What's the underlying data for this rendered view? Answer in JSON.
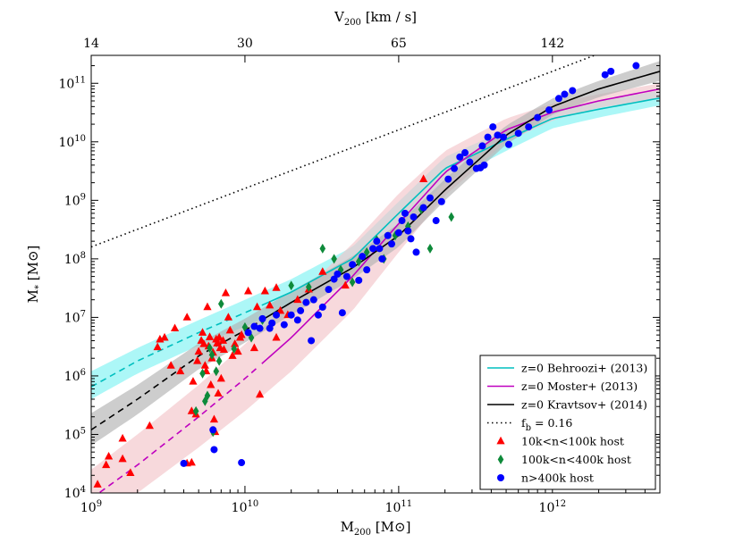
{
  "chart_data": {
    "type": "scatter",
    "x_scale": "log",
    "y_scale": "log",
    "xlim": [
      1000000000.0,
      5000000000000.0
    ],
    "ylim": [
      10000.0,
      300000000000.0
    ],
    "xlabel": "M200 [M⊙]",
    "ylabel": "M* [M⊙]",
    "top_axis_label": "V200 [km / s]",
    "x_ticks": [
      1000000000.0,
      10000000000.0,
      100000000000.0,
      1000000000000.0
    ],
    "x_tick_labels": [
      {
        "base": "10",
        "exp": "9"
      },
      {
        "base": "10",
        "exp": "10"
      },
      {
        "base": "10",
        "exp": "11"
      },
      {
        "base": "10",
        "exp": "12"
      }
    ],
    "y_ticks": [
      10000.0,
      100000.0,
      1000000.0,
      10000000.0,
      100000000.0,
      1000000000.0,
      10000000000.0,
      100000000000.0
    ],
    "y_tick_labels": [
      {
        "base": "10",
        "exp": "4"
      },
      {
        "base": "10",
        "exp": "5"
      },
      {
        "base": "10",
        "exp": "6"
      },
      {
        "base": "10",
        "exp": "7"
      },
      {
        "base": "10",
        "exp": "8"
      },
      {
        "base": "10",
        "exp": "9"
      },
      {
        "base": "10",
        "exp": "10"
      },
      {
        "base": "10",
        "exp": "11"
      }
    ],
    "top_ticks": [
      {
        "label": "14",
        "m200": 1000000000.0
      },
      {
        "label": "30",
        "m200": 10000000000.0
      },
      {
        "label": "65",
        "m200": 100000000000.0
      },
      {
        "label": "142",
        "m200": 1000000000000.0
      }
    ],
    "legend_position": "lower-right",
    "grid": false,
    "series": [
      {
        "name": "z=0 Behroozi+ (2013)",
        "kind": "band_line",
        "color": "#00bfbf",
        "band_color": "#7ff3f3",
        "x": [
          1000000000.0,
          2000000000.0,
          5000000000.0,
          10000000000.0,
          20000000000.0,
          50000000000.0,
          100000000000.0,
          200000000000.0,
          500000000000.0,
          1000000000000.0,
          2000000000000.0,
          5000000000000.0
        ],
        "y": [
          650000.0,
          1800000.0,
          5500000.0,
          12000000.0,
          27000000.0,
          100000000.0,
          600000000.0,
          3500000000.0,
          11000000000.0,
          25000000000.0,
          36000000000.0,
          56000000000.0
        ],
        "band_lo": [
          400000.0,
          1100000.0,
          3300000.0,
          7000000.0,
          16000000.0,
          60000000.0,
          350000000.0,
          2000000000.0,
          7000000000.0,
          17000000000.0,
          26000000000.0,
          42000000000.0
        ],
        "band_hi": [
          1200000.0,
          3000000.0,
          9000000.0,
          20000000.0,
          45000000.0,
          160000000.0,
          950000000.0,
          5500000000.0,
          16000000000.0,
          35000000000.0,
          50000000000.0,
          75000000000.0
        ],
        "solid_from_x": 12000000000.0
      },
      {
        "name": "z=0 Moster+ (2013)",
        "kind": "band_line",
        "color": "#bf00bf",
        "band_color": "#f2c4c9",
        "x": [
          1000000000.0,
          2000000000.0,
          5000000000.0,
          10000000000.0,
          20000000000.0,
          50000000000.0,
          100000000000.0,
          200000000000.0,
          500000000000.0,
          1000000000000.0,
          2000000000000.0,
          5000000000000.0
        ],
        "y": [
          8000.0,
          30000.0,
          200000.0,
          900000.0,
          4500000.0,
          50000000.0,
          400000000.0,
          3000000000.0,
          16000000000.0,
          32000000000.0,
          50000000000.0,
          80000000000.0
        ],
        "band_lo": [
          3000.0,
          10000.0,
          60000.0,
          250000.0,
          1200000.0,
          13000000.0,
          130000000.0,
          1200000000.0,
          10000000000.0,
          23000000000.0,
          38000000000.0,
          55000000000.0
        ],
        "band_hi": [
          25000.0,
          100000.0,
          700000.0,
          3500000.0,
          18000000.0,
          180000000.0,
          1300000000.0,
          7000000000.0,
          25000000000.0,
          45000000000.0,
          65000000000.0,
          100000000000.0
        ],
        "solid_from_x": 12000000000.0
      },
      {
        "name": "z=0 Kravtsov+ (2014)",
        "kind": "band_line",
        "color": "#000000",
        "band_color": "#b2b2b2",
        "x": [
          1000000000.0,
          2000000000.0,
          5000000000.0,
          10000000000.0,
          20000000000.0,
          50000000000.0,
          100000000000.0,
          200000000000.0,
          500000000000.0,
          1000000000000.0,
          2000000000000.0,
          5000000000000.0
        ],
        "y": [
          120000.0,
          400000.0,
          2200000.0,
          6000000.0,
          18000000.0,
          70000000.0,
          250000000.0,
          1500000000.0,
          13000000000.0,
          40000000000.0,
          80000000000.0,
          160000000000.0
        ],
        "band_lo": [
          65000.0,
          220000.0,
          1300000.0,
          3700000.0,
          11000000.0,
          45000000.0,
          160000000.0,
          1000000000.0,
          9000000000.0,
          29000000000.0,
          58000000000.0,
          110000000000.0
        ],
        "band_hi": [
          230000.0,
          700000.0,
          3600000.0,
          9500000.0,
          28000000.0,
          110000000.0,
          400000000.0,
          2300000000.0,
          19000000000.0,
          55000000000.0,
          110000000000.0,
          240000000000.0
        ],
        "solid_from_x": 12000000000.0
      },
      {
        "name": "f_b = 0.16",
        "label_main": "f",
        "label_sub": "b",
        "label_rest": " = 0.16",
        "kind": "dotted_line",
        "color": "#000000",
        "x": [
          1000000000.0,
          5000000000000.0
        ],
        "y": [
          160000000.0,
          800000000000.0
        ]
      },
      {
        "name": "10k<n<100k host",
        "kind": "markers",
        "marker": "triangle",
        "color": "#ff0000",
        "points": [
          [
            1100000000.0,
            14000.0
          ],
          [
            1250000000.0,
            30000.0
          ],
          [
            1300000000.0,
            42000.0
          ],
          [
            1600000000.0,
            38000.0
          ],
          [
            1800000000.0,
            22000.0
          ],
          [
            1600000000.0,
            85000.0
          ],
          [
            2400000000.0,
            140000.0
          ],
          [
            2700000000.0,
            3100000.0
          ],
          [
            3000000000.0,
            4500000.0
          ],
          [
            3300000000.0,
            1500000.0
          ],
          [
            3500000000.0,
            6500000.0
          ],
          [
            3800000000.0,
            1200000.0
          ],
          [
            4200000000.0,
            10000000.0
          ],
          [
            4500000000.0,
            250000.0
          ],
          [
            4800000000.0,
            220000.0
          ],
          [
            4200000000.0,
            32000.0
          ],
          [
            4500000000.0,
            33000.0
          ],
          [
            4600000000.0,
            800000.0
          ],
          [
            4900000000.0,
            1800000.0
          ],
          [
            5000000000.0,
            2600000.0
          ],
          [
            5200000000.0,
            4000000.0
          ],
          [
            5400000000.0,
            3500000.0
          ],
          [
            5500000000.0,
            1500000.0
          ],
          [
            5600000000.0,
            1200000.0
          ],
          [
            5700000000.0,
            15000000.0
          ],
          [
            5800000000.0,
            3200000.0
          ],
          [
            5900000000.0,
            4600000.0
          ],
          [
            6000000000.0,
            700000.0
          ],
          [
            6100000000.0,
            2000000.0
          ],
          [
            6200000000.0,
            2500000.0
          ],
          [
            6300000000.0,
            180000.0
          ],
          [
            6400000000.0,
            110000.0
          ],
          [
            6500000000.0,
            4200000.0
          ],
          [
            6600000000.0,
            3600000.0
          ],
          [
            6700000000.0,
            500000.0
          ],
          [
            6800000000.0,
            4500000.0
          ],
          [
            6900000000.0,
            3000000.0
          ],
          [
            7000000000.0,
            900000.0
          ],
          [
            7200000000.0,
            4000000.0
          ],
          [
            7300000000.0,
            2800000.0
          ],
          [
            7500000000.0,
            26000000.0
          ],
          [
            7800000000.0,
            10000000.0
          ],
          [
            8000000000.0,
            6000000.0
          ],
          [
            8300000000.0,
            2200000.0
          ],
          [
            8600000000.0,
            3500000.0
          ],
          [
            9000000000.0,
            2600000.0
          ],
          [
            9300000000.0,
            4500000.0
          ],
          [
            10500000000.0,
            28000000.0
          ],
          [
            11500000000.0,
            3000000.0
          ],
          [
            12500000000.0,
            480000.0
          ],
          [
            13500000000.0,
            28000000.0
          ],
          [
            14500000000.0,
            16000000.0
          ],
          [
            16000000000.0,
            32000000.0
          ],
          [
            17000000000.0,
            13000000.0
          ],
          [
            19000000000.0,
            11000000.0
          ],
          [
            22000000000.0,
            20000000.0
          ],
          [
            26000000000.0,
            30000000.0
          ],
          [
            32000000000.0,
            60000000.0
          ],
          [
            45000000000.0,
            35000000.0
          ],
          [
            145000000000.0,
            2300000000.0
          ],
          [
            9500000000.0,
            5000000.0
          ],
          [
            12000000000.0,
            15000000.0
          ],
          [
            16000000000.0,
            4500000.0
          ],
          [
            2800000000.0,
            4200000.0
          ],
          [
            5300000000.0,
            5500000.0
          ]
        ]
      },
      {
        "name": "100k<n<400k host",
        "kind": "markers",
        "marker": "diamond",
        "color": "#0e8a3a",
        "points": [
          [
            4800000000.0,
            250000.0
          ],
          [
            5300000000.0,
            1100000.0
          ],
          [
            5500000000.0,
            370000.0
          ],
          [
            5700000000.0,
            460000.0
          ],
          [
            5900000000.0,
            3000000.0
          ],
          [
            6100000000.0,
            2300000.0
          ],
          [
            6200000000.0,
            110000.0
          ],
          [
            6500000000.0,
            1200000.0
          ],
          [
            6800000000.0,
            1800000.0
          ],
          [
            7000000000.0,
            17000000.0
          ],
          [
            8500000000.0,
            2900000.0
          ],
          [
            10000000000.0,
            6800000.0
          ],
          [
            11000000000.0,
            4500000.0
          ],
          [
            13000000000.0,
            9000000.0
          ],
          [
            20000000000.0,
            35000000.0
          ],
          [
            26000000000.0,
            33000000.0
          ],
          [
            32000000000.0,
            150000000.0
          ],
          [
            38000000000.0,
            100000000.0
          ],
          [
            42000000000.0,
            65000000.0
          ],
          [
            50000000000.0,
            40000000.0
          ],
          [
            55000000000.0,
            90000000.0
          ],
          [
            62000000000.0,
            130000000.0
          ],
          [
            72000000000.0,
            210000000.0
          ],
          [
            80000000000.0,
            100000000.0
          ],
          [
            95000000000.0,
            250000000.0
          ],
          [
            115000000000.0,
            360000000.0
          ],
          [
            140000000000.0,
            700000000.0
          ],
          [
            160000000000.0,
            150000000.0
          ],
          [
            220000000000.0,
            520000000.0
          ]
        ]
      },
      {
        "name": "n>400k host",
        "kind": "markers",
        "marker": "circle",
        "color": "#0000ff",
        "points": [
          [
            4000000000.0,
            32000.0
          ],
          [
            6200000000.0,
            120000.0
          ],
          [
            6300000000.0,
            55000.0
          ],
          [
            9500000000.0,
            33000.0
          ],
          [
            10500000000.0,
            5500000.0
          ],
          [
            11500000000.0,
            7000000.0
          ],
          [
            12500000000.0,
            6500000.0
          ],
          [
            13000000000.0,
            9500000.0
          ],
          [
            14500000000.0,
            6500000.0
          ],
          [
            15000000000.0,
            8000000.0
          ],
          [
            16000000000.0,
            11000000.0
          ],
          [
            18000000000.0,
            7500000.0
          ],
          [
            20000000000.0,
            11000000.0
          ],
          [
            22000000000.0,
            9000000.0
          ],
          [
            23000000000.0,
            13000000.0
          ],
          [
            25000000000.0,
            18000000.0
          ],
          [
            27000000000.0,
            4000000.0
          ],
          [
            28000000000.0,
            20000000.0
          ],
          [
            30000000000.0,
            11000000.0
          ],
          [
            32000000000.0,
            15000000.0
          ],
          [
            35000000000.0,
            30000000.0
          ],
          [
            38000000000.0,
            45000000.0
          ],
          [
            40000000000.0,
            55000000.0
          ],
          [
            43000000000.0,
            12000000.0
          ],
          [
            46000000000.0,
            50000000.0
          ],
          [
            50000000000.0,
            80000000.0
          ],
          [
            55000000000.0,
            43000000.0
          ],
          [
            58000000000.0,
            110000000.0
          ],
          [
            62000000000.0,
            65000000.0
          ],
          [
            68000000000.0,
            150000000.0
          ],
          [
            72000000000.0,
            200000000.0
          ],
          [
            78000000000.0,
            100000000.0
          ],
          [
            85000000000.0,
            250000000.0
          ],
          [
            90000000000.0,
            180000000.0
          ],
          [
            100000000000.0,
            280000000.0
          ],
          [
            105000000000.0,
            450000000.0
          ],
          [
            110000000000.0,
            600000000.0
          ],
          [
            115000000000.0,
            300000000.0
          ],
          [
            125000000000.0,
            520000000.0
          ],
          [
            130000000000.0,
            130000000.0
          ],
          [
            145000000000.0,
            750000000.0
          ],
          [
            160000000000.0,
            1100000000.0
          ],
          [
            175000000000.0,
            450000000.0
          ],
          [
            190000000000.0,
            950000000.0
          ],
          [
            210000000000.0,
            2300000000.0
          ],
          [
            230000000000.0,
            3500000000.0
          ],
          [
            250000000000.0,
            5500000000.0
          ],
          [
            270000000000.0,
            6500000000.0
          ],
          [
            290000000000.0,
            4500000000.0
          ],
          [
            320000000000.0,
            3500000000.0
          ],
          [
            350000000000.0,
            8500000000.0
          ],
          [
            380000000000.0,
            12000000000.0
          ],
          [
            410000000000.0,
            18000000000.0
          ],
          [
            440000000000.0,
            13000000000.0
          ],
          [
            480000000000.0,
            12000000000.0
          ],
          [
            520000000000.0,
            9000000000.0
          ],
          [
            600000000000.0,
            14000000000.0
          ],
          [
            700000000000.0,
            18000000000.0
          ],
          [
            800000000000.0,
            26000000000.0
          ],
          [
            950000000000.0,
            35000000000.0
          ],
          [
            1100000000000.0,
            55000000000.0
          ],
          [
            1200000000000.0,
            65000000000.0
          ],
          [
            1350000000000.0,
            75000000000.0
          ],
          [
            2200000000000.0,
            140000000000.0
          ],
          [
            2400000000000.0,
            160000000000.0
          ],
          [
            3500000000000.0,
            200000000000.0
          ],
          [
            360000000000.0,
            4000000000.0
          ],
          [
            340000000000.0,
            3600000000.0
          ],
          [
            120000000000.0,
            220000000.0
          ],
          [
            75000000000.0,
            150000000.0
          ]
        ]
      }
    ]
  }
}
